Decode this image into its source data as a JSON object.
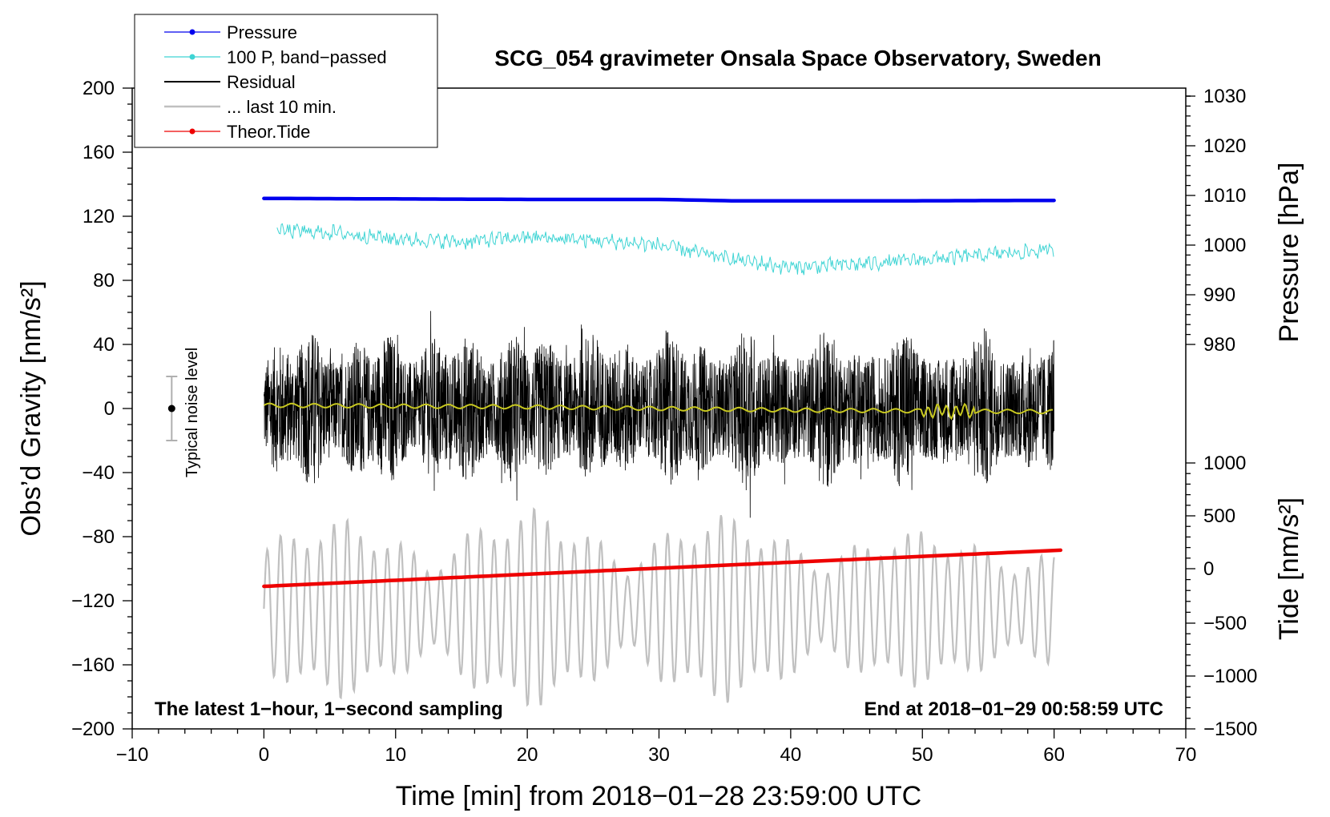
{
  "chart_data": {
    "type": "line",
    "title": "SCG_054 gravimeter Onsala Space Observatory, Sweden",
    "xlabel": "Time [min] from 2018−01−28 23:59:00 UTC",
    "ylabel_left": "Obs’d Gravity [nm/s²]",
    "ylabel_right_top": "Pressure [hPa]",
    "ylabel_right_bottom": "Tide [nm/s²]",
    "xlim": [
      -10,
      70
    ],
    "ylim_left": [
      -200,
      200
    ],
    "x_ticks": [
      "−10",
      "0",
      "10",
      "20",
      "30",
      "40",
      "50",
      "60",
      "70"
    ],
    "y_ticks_left": [
      "200",
      "160",
      "120",
      "80",
      "40",
      "0",
      "−40",
      "−80",
      "−120",
      "−160",
      "−200"
    ],
    "y_ticks_pressure": [
      "1030",
      "1020",
      "1010",
      "1000",
      "990",
      "980"
    ],
    "y_ticks_tide": [
      "1000",
      "500",
      "0",
      "−500",
      "−1000",
      "−1500"
    ],
    "pressure_axis": {
      "values": [
        980,
        990,
        1000,
        1010,
        1020,
        1030
      ],
      "gravity_equiv": [
        40,
        71,
        102,
        133,
        164,
        195
      ]
    },
    "tide_axis": {
      "values": [
        1000,
        500,
        0,
        -500,
        -1000,
        -1500
      ],
      "gravity_equiv": [
        -34,
        -67,
        -100,
        -134,
        -167,
        -200
      ]
    },
    "legend": [
      {
        "label": "Pressure",
        "color": "#0000ee",
        "marker": true
      },
      {
        "label": "100 P, band−passed",
        "color": "#3fd4d4",
        "marker": true
      },
      {
        "label": "Residual",
        "color": "#000000",
        "marker": false
      },
      {
        "label": "... last 10 min.",
        "color": "#c0c0c0",
        "marker": false
      },
      {
        "label": "Theor.Tide",
        "color": "#ee0000",
        "marker": true
      }
    ],
    "series": [
      {
        "name": "Pressure",
        "unit": "hPa",
        "color": "#0000ee",
        "x": [
          0,
          10,
          20,
          30,
          36,
          46,
          60
        ],
        "values": [
          1009.4,
          1009.3,
          1009.2,
          1009.2,
          1008.9,
          1008.9,
          1009.0
        ]
      },
      {
        "name": "100 P, band−passed",
        "unit": "nm/s² (plotted)",
        "color": "#3fd4d4",
        "x": [
          1,
          5,
          10,
          15,
          20,
          25,
          30,
          35,
          40,
          45,
          50,
          55,
          60
        ],
        "values": [
          111,
          110,
          106,
          104,
          107,
          105,
          102,
          94,
          88,
          90,
          93,
          96,
          99
        ],
        "noise_amplitude": 4
      },
      {
        "name": "Residual",
        "unit": "nm/s²",
        "color": "#000000",
        "x": [
          0,
          60
        ],
        "values": [
          0,
          0
        ],
        "min": -72,
        "max": 73
      },
      {
        "name": "Residual (smoothed)",
        "unit": "nm/s²",
        "color": "#c8c820",
        "x": [
          0,
          20,
          40,
          60
        ],
        "values": [
          2,
          1,
          -1,
          -2
        ]
      },
      {
        "name": "... last 10 min.",
        "unit": "nm/s² (offset)",
        "color": "#c0c0c0",
        "x": [
          0,
          60
        ],
        "center": -125,
        "min": -185,
        "max": -59
      },
      {
        "name": "Theor.Tide",
        "unit": "nm/s²",
        "color": "#ee0000",
        "x": [
          0,
          60.5
        ],
        "values": [
          -162,
          175
        ]
      }
    ],
    "noise_bar": {
      "label": "Typical noise level",
      "x": -7,
      "center": 0,
      "low": -20,
      "high": 20
    },
    "notes": {
      "left": "The latest 1−hour, 1−second sampling",
      "right": "End at 2018−01−29 00:58:59 UTC"
    }
  }
}
